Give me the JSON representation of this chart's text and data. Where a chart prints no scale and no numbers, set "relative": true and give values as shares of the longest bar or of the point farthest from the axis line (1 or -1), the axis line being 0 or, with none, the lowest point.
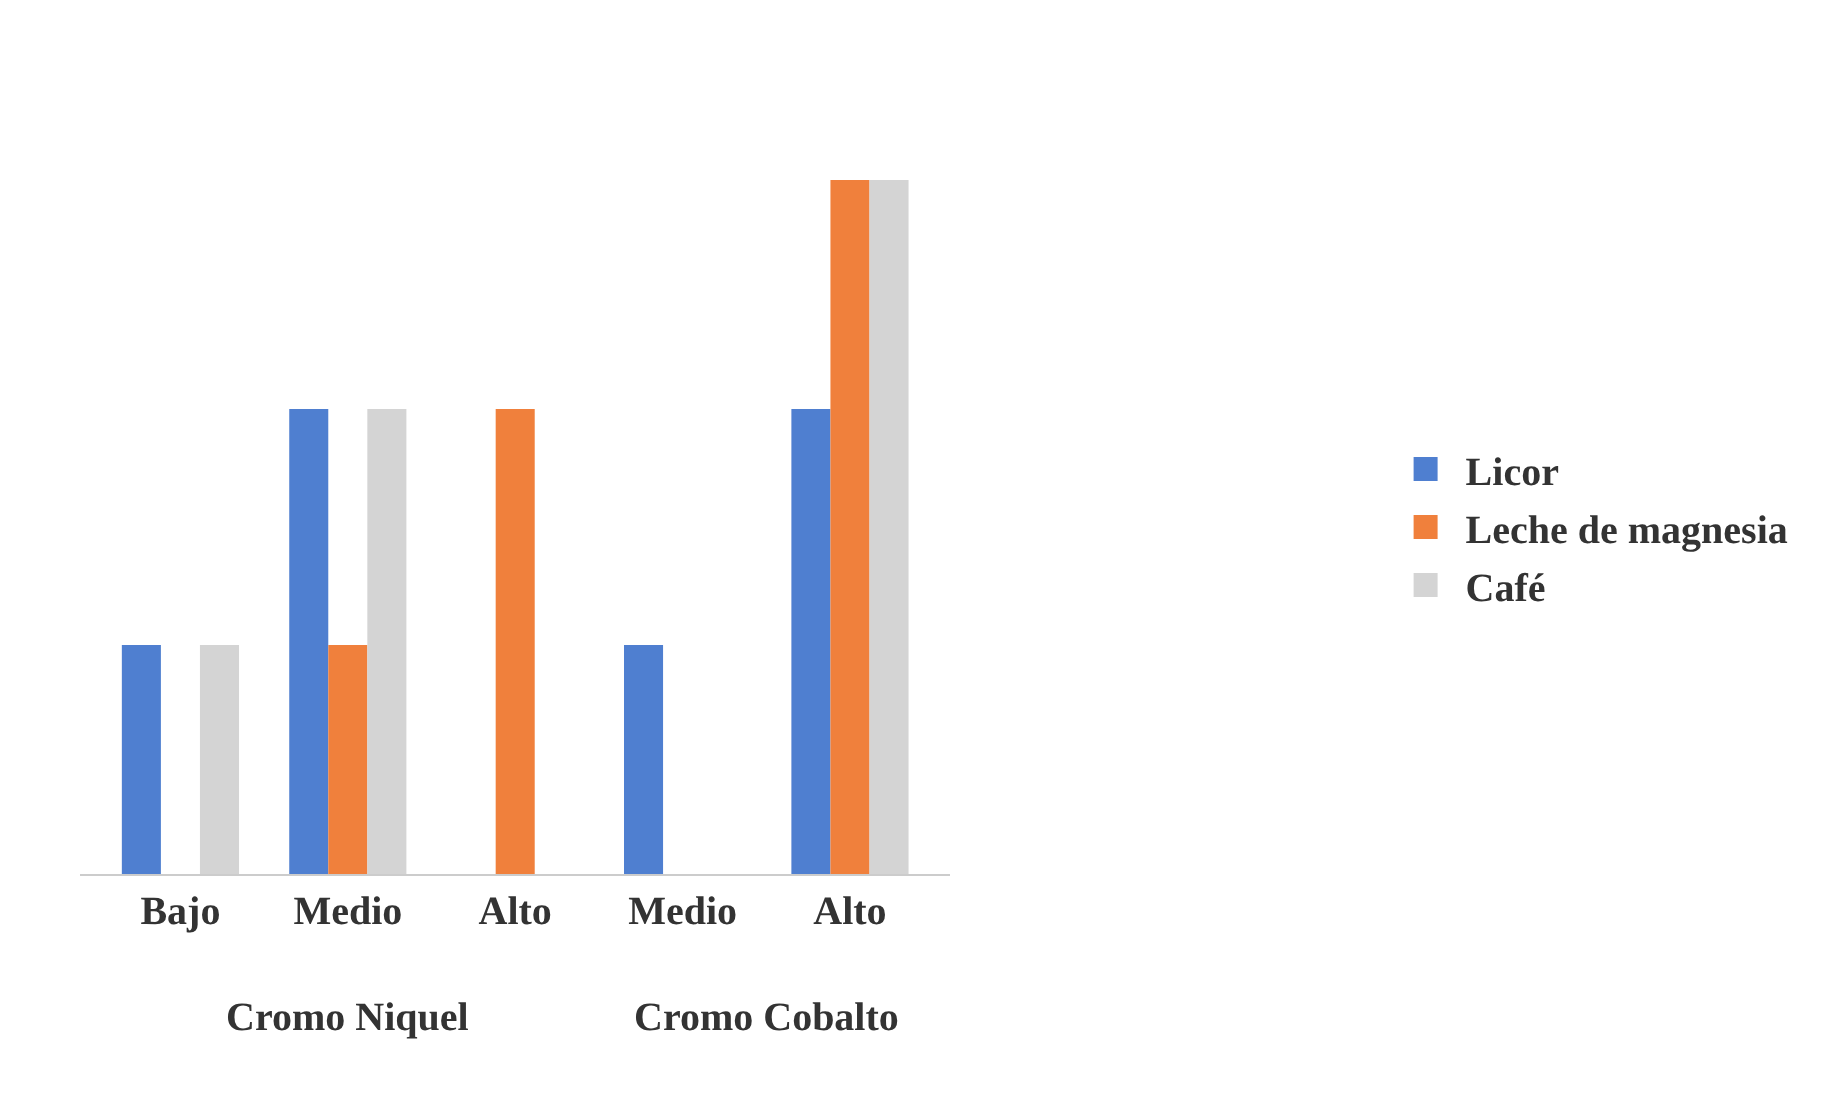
{
  "chart_data": {
    "type": "bar",
    "relative": true,
    "categories": [
      "Bajo",
      "Medio",
      "Alto",
      "Medio",
      "Alto"
    ],
    "series": [
      {
        "name": "Licor",
        "color": "#4f7fd0",
        "values": [
          0.33,
          0.67,
          null,
          0.33,
          0.67
        ]
      },
      {
        "name": "Leche de magnesia",
        "color": "#f0803c",
        "values": [
          null,
          0.33,
          0.67,
          null,
          1
        ]
      },
      {
        "name": "Café",
        "color": "#d4d4d4",
        "values": [
          0.33,
          0.67,
          null,
          null,
          1
        ]
      }
    ],
    "annotations": [
      "Cromo Niquel",
      "Cromo Cobalto"
    ],
    "legend": "right"
  }
}
